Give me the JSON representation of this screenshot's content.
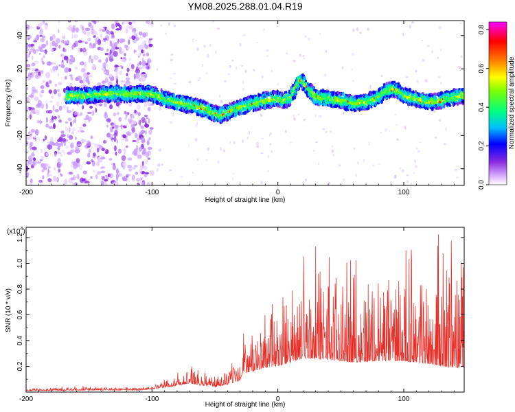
{
  "title": "YM08.2025.288.01.04.R19",
  "chart_data": [
    {
      "type": "heatmap",
      "xlabel": "Height of straight line (km)",
      "ylabel": "Frequency (Hz)",
      "xlim": [
        -200,
        148
      ],
      "ylim": [
        -50,
        49
      ],
      "xticks": [
        -200,
        -100,
        0,
        100
      ],
      "xtick_labels": [
        "-200",
        "-100",
        "0",
        "100"
      ],
      "yticks": [
        -40,
        -20,
        0,
        20,
        40
      ],
      "ytick_labels": [
        "-40",
        "-20",
        "0",
        "20",
        "40"
      ],
      "colorbar": {
        "label": "Normalized spectral amplitude",
        "range": [
          0.0,
          0.84
        ],
        "ticks": [
          0.0,
          0.2,
          0.4,
          0.6,
          0.8
        ],
        "tick_labels": [
          "0.0",
          "0.2",
          "0.4",
          "0.6",
          "0.8"
        ],
        "colormap": [
          "#ffffff",
          "#d6a8ff",
          "#8a2be2",
          "#0000ff",
          "#00bfff",
          "#00ff80",
          "#80ff00",
          "#ffff00",
          "#ff8000",
          "#ff0000",
          "#ff00ff"
        ]
      },
      "ridge": {
        "x": [
          -165,
          -150,
          -140,
          -120,
          -100,
          -90,
          -80,
          -70,
          -62,
          -55,
          -50,
          -45,
          -40,
          -30,
          -20,
          -10,
          0,
          5,
          10,
          15,
          18,
          20,
          25,
          30,
          40,
          50,
          60,
          70,
          80,
          85,
          90,
          95,
          100,
          110,
          120,
          130,
          140,
          148
        ],
        "freq": [
          4,
          4,
          5,
          5,
          5,
          2,
          0,
          -2,
          -3,
          -5,
          -7,
          -8,
          -6,
          -3,
          -1,
          1,
          2,
          1,
          3,
          10,
          14,
          12,
          7,
          3,
          2,
          1,
          -1,
          0,
          3,
          6,
          8,
          7,
          4,
          2,
          0,
          1,
          3,
          4
        ]
      }
    },
    {
      "type": "line",
      "xlabel": "Height of straight line (km)",
      "ylabel": "SNR (10 * v/v)",
      "scale_label": "(x10",
      "scale_exp": "4",
      "scale_close": ")",
      "xlim": [
        -200,
        148
      ],
      "ylim": [
        0,
        12800
      ],
      "xticks": [
        -200,
        -100,
        0,
        100
      ],
      "xtick_labels": [
        "-200",
        "-100",
        "0",
        "100"
      ],
      "yticks": [
        2000,
        4000,
        6000,
        8000,
        10000,
        12000
      ],
      "ytick_labels": [
        "0.2",
        "0.4",
        "0.6",
        "0.8",
        "1.0",
        "1.2"
      ],
      "color": "#e8302a",
      "envelope": {
        "x": [
          -200,
          -150,
          -110,
          -95,
          -80,
          -70,
          -60,
          -50,
          -40,
          -30,
          -28,
          -20,
          -10,
          0,
          10,
          20,
          30,
          40,
          60,
          80,
          100,
          120,
          130,
          140,
          148
        ],
        "baseline": [
          100,
          150,
          150,
          300,
          500,
          700,
          500,
          400,
          600,
          900,
          1500,
          1600,
          1900,
          2000,
          2300,
          2600,
          2600,
          2500,
          2300,
          2400,
          2400,
          2200,
          2000,
          1900,
          1900
        ],
        "peak": [
          300,
          500,
          400,
          700,
          1600,
          2100,
          1500,
          1500,
          2300,
          3000,
          4500,
          5000,
          6000,
          7500,
          8500,
          10500,
          11300,
          10500,
          10200,
          10600,
          11000,
          11200,
          12600,
          11500,
          9500
        ]
      }
    }
  ]
}
